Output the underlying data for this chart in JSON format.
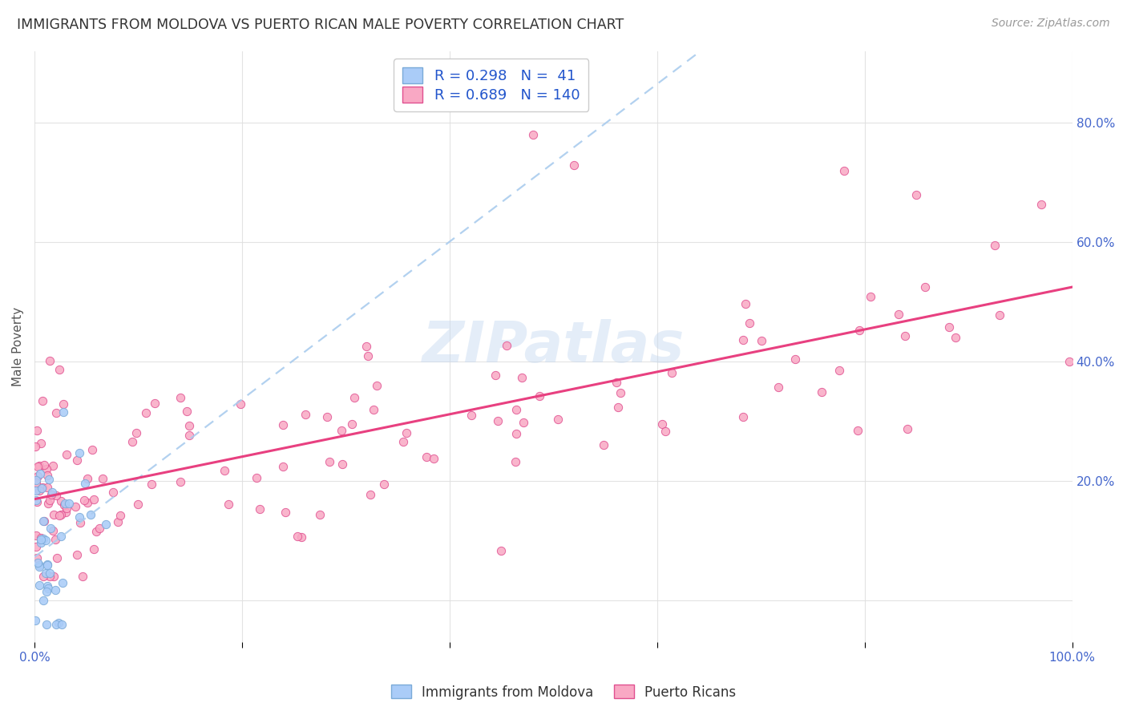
{
  "title": "IMMIGRANTS FROM MOLDOVA VS PUERTO RICAN MALE POVERTY CORRELATION CHART",
  "source": "Source: ZipAtlas.com",
  "ylabel": "Male Poverty",
  "y_ticks": [
    0.0,
    0.2,
    0.4,
    0.6,
    0.8
  ],
  "y_tick_labels_right": [
    "",
    "20.0%",
    "40.0%",
    "60.0%",
    "80.0%"
  ],
  "xlim": [
    0.0,
    1.0
  ],
  "ylim": [
    -0.07,
    0.92
  ],
  "r_moldova": 0.298,
  "n_moldova": 41,
  "r_puertorico": 0.689,
  "n_puertorico": 140,
  "legend_label_1": "Immigrants from Moldova",
  "legend_label_2": "Puerto Ricans",
  "color_moldova": "#aaccf8",
  "color_puertorico": "#f9a8c4",
  "edge_color_moldova": "#7aaad8",
  "edge_color_puertorico": "#e05090",
  "line_color_moldova": "#aaccf8",
  "line_color_puertorico": "#e84080",
  "watermark_text": "ZIPatlas",
  "background_color": "#ffffff",
  "grid_color": "#e0e0e0",
  "title_color": "#333333",
  "axis_label_color": "#555555",
  "tick_color": "#4466cc",
  "legend_text_color": "#2255cc",
  "source_color": "#999999"
}
